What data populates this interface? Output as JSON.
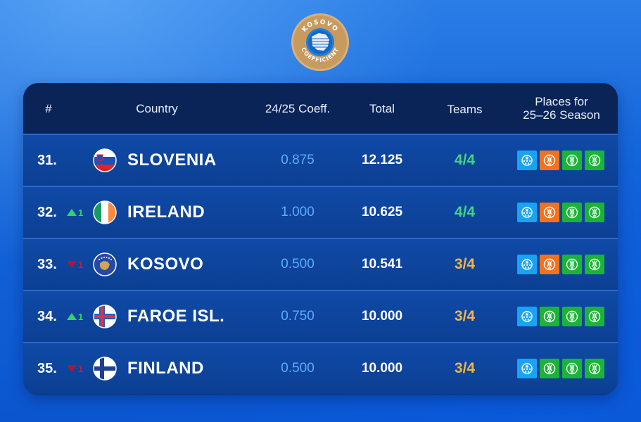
{
  "logo": {
    "top_text": "KOSOVO",
    "bottom_text": "COEFFICIENT"
  },
  "headers": {
    "rank": "#",
    "country": "Country",
    "coeff": "24/25 Coeff.",
    "total": "Total",
    "teams": "Teams",
    "places_line1": "Places for",
    "places_line2": "25–26 Season"
  },
  "rows": [
    {
      "rank": "31.",
      "trend": "",
      "trend_dir": "none",
      "country": "SLOVENIA",
      "flag": "slovenia-flag",
      "coeff": "0.875",
      "total": "12.125",
      "teams": "4/4",
      "places": [
        "ucl",
        "uel",
        "ecl",
        "ecl"
      ]
    },
    {
      "rank": "32.",
      "trend": "1",
      "trend_dir": "up",
      "country": "IRELAND",
      "flag": "ireland-flag",
      "coeff": "1.000",
      "total": "10.625",
      "teams": "4/4",
      "places": [
        "ucl",
        "uel",
        "ecl",
        "ecl"
      ]
    },
    {
      "rank": "33.",
      "trend": "1",
      "trend_dir": "down",
      "country": "KOSOVO",
      "flag": "kosovo-flag",
      "coeff": "0.500",
      "total": "10.541",
      "teams": "3/4",
      "places": [
        "ucl",
        "uel",
        "ecl",
        "ecl"
      ]
    },
    {
      "rank": "34.",
      "trend": "1",
      "trend_dir": "up",
      "country": "FAROE ISL.",
      "flag": "faroe-islands-flag",
      "coeff": "0.750",
      "total": "10.000",
      "teams": "3/4",
      "places": [
        "ucl",
        "ecl",
        "ecl",
        "ecl"
      ]
    },
    {
      "rank": "35.",
      "trend": "1",
      "trend_dir": "down",
      "country": "FINLAND",
      "flag": "finland-flag",
      "coeff": "0.500",
      "total": "10.000",
      "teams": "3/4",
      "places": [
        "ucl",
        "ecl",
        "ecl",
        "ecl"
      ]
    }
  ],
  "colors": {
    "ucl": "#1aa3f2",
    "uel": "#f2721f",
    "ecl": "#1db338",
    "teams_full": "#43d67a",
    "teams_partial": "#f0b54a",
    "coeff": "#5fa9ff"
  }
}
